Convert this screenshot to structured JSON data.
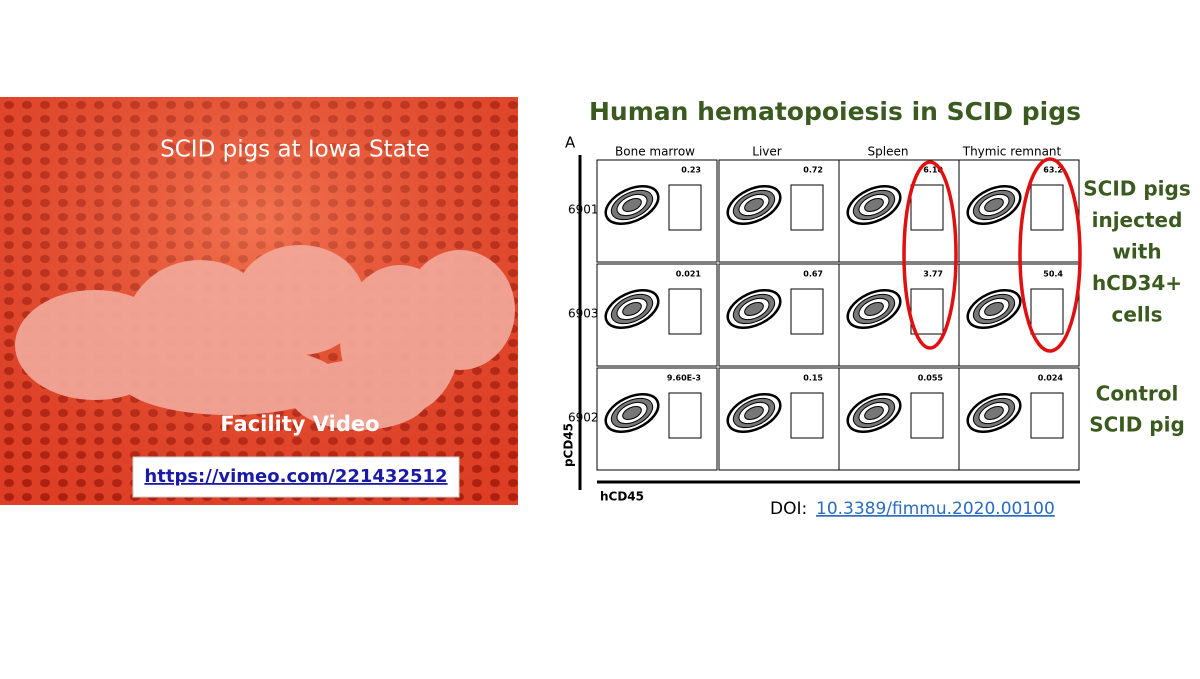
{
  "photo": {
    "caption": "SCID pigs at Iowa State",
    "video_label": "Facility Video",
    "link": "https://vimeo.com/221432512"
  },
  "figure": {
    "title": "Human hematopoiesis in SCID pigs",
    "panel_label": "A",
    "columns": [
      "Bone marrow",
      "Liver",
      "Spleen",
      "Thymic remnant"
    ],
    "rows": [
      {
        "label": "6901",
        "values": [
          "0.23",
          "0.72",
          "6.10",
          "63.2"
        ]
      },
      {
        "label": "6903",
        "values": [
          "0.021",
          "0.67",
          "3.77",
          "50.4"
        ]
      },
      {
        "label": "6902",
        "values": [
          "9.60E-3",
          "0.15",
          "0.055",
          "0.024"
        ]
      }
    ],
    "y_axis": "pCD45",
    "x_axis": "hCD45"
  },
  "annotations": {
    "injected": [
      "SCID pigs",
      "injected",
      "with",
      "hCD34+",
      "cells"
    ],
    "control": [
      "Control",
      "SCID pig"
    ]
  },
  "doi": {
    "prefix": "DOI:",
    "link": "10.3389/fimmu.2020.00100"
  }
}
